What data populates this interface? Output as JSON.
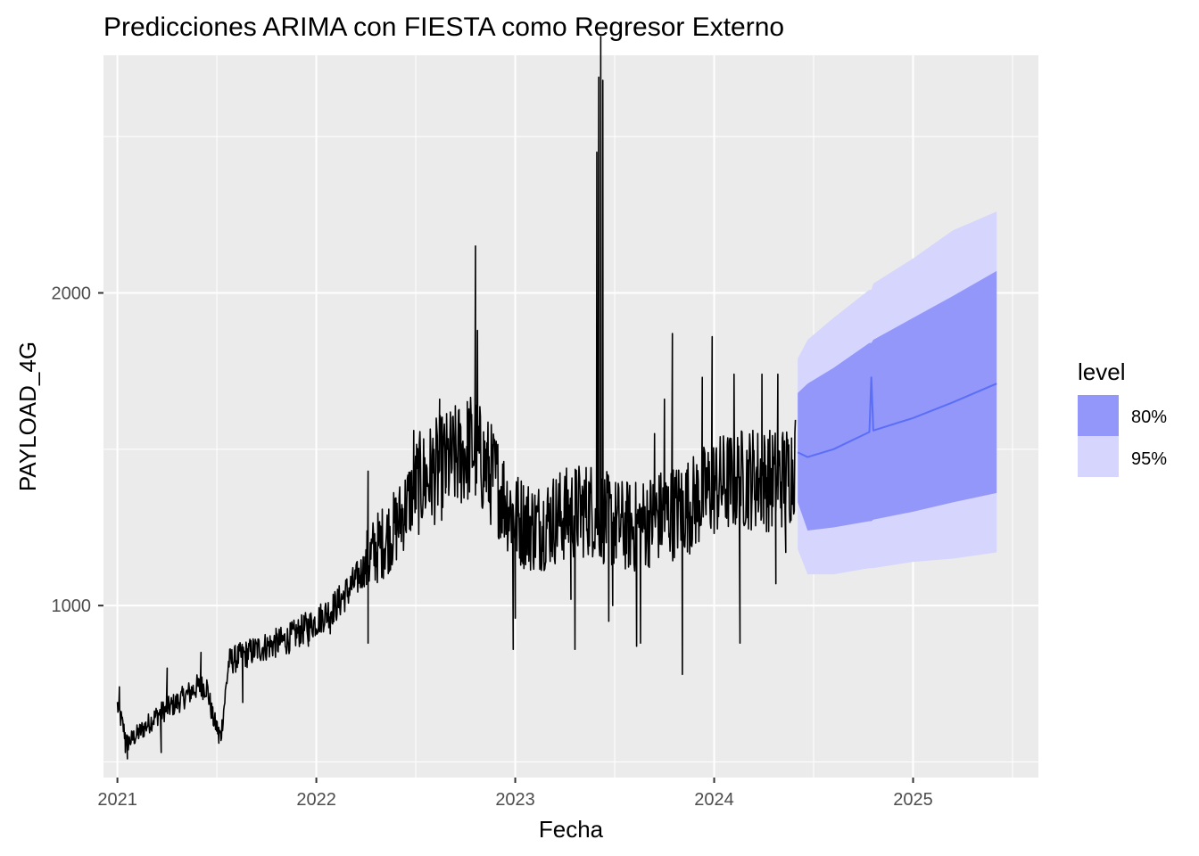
{
  "chart_data": {
    "type": "line",
    "title": "Predicciones ARIMA con FIESTA como Regresor Externo",
    "xlabel": "Fecha",
    "ylabel": "PAYLOAD_4G",
    "xlim": [
      2020.93,
      2025.63
    ],
    "ylim": [
      450,
      2760
    ],
    "x_ticks": [
      2021,
      2022,
      2023,
      2024,
      2025
    ],
    "x_tick_labels": [
      "2021",
      "2022",
      "2023",
      "2024",
      "2025"
    ],
    "y_ticks": [
      1000,
      2000
    ],
    "y_tick_labels": [
      "1000",
      "2000"
    ],
    "y_minor_ticks": [
      500,
      1500,
      2500
    ],
    "grid": true,
    "legend": {
      "title": "level",
      "position": "right",
      "entries": [
        {
          "label": "80%",
          "color": "#9297f9"
        },
        {
          "label": "95%",
          "color": "#d5d5fd"
        }
      ]
    },
    "colors": {
      "history": "#000000",
      "forecast": "#5a6ef7",
      "band80": "#9297f9",
      "band95": "#d5d5fd",
      "panel": "#ebebeb",
      "grid": "#ffffff"
    },
    "history_anchors": [
      {
        "x": 2021.0,
        "y": 680
      },
      {
        "x": 2021.05,
        "y": 560
      },
      {
        "x": 2021.12,
        "y": 600
      },
      {
        "x": 2021.2,
        "y": 650
      },
      {
        "x": 2021.3,
        "y": 690
      },
      {
        "x": 2021.4,
        "y": 740
      },
      {
        "x": 2021.45,
        "y": 740
      },
      {
        "x": 2021.48,
        "y": 640
      },
      {
        "x": 2021.52,
        "y": 580
      },
      {
        "x": 2021.56,
        "y": 820
      },
      {
        "x": 2021.7,
        "y": 860
      },
      {
        "x": 2021.85,
        "y": 890
      },
      {
        "x": 2022.0,
        "y": 950
      },
      {
        "x": 2022.1,
        "y": 1000
      },
      {
        "x": 2022.2,
        "y": 1080
      },
      {
        "x": 2022.3,
        "y": 1180
      },
      {
        "x": 2022.4,
        "y": 1250
      },
      {
        "x": 2022.5,
        "y": 1380
      },
      {
        "x": 2022.6,
        "y": 1430
      },
      {
        "x": 2022.7,
        "y": 1470
      },
      {
        "x": 2022.78,
        "y": 1510
      },
      {
        "x": 2022.9,
        "y": 1400
      },
      {
        "x": 2023.0,
        "y": 1280
      },
      {
        "x": 2023.1,
        "y": 1250
      },
      {
        "x": 2023.2,
        "y": 1280
      },
      {
        "x": 2023.3,
        "y": 1300
      },
      {
        "x": 2023.38,
        "y": 1310
      },
      {
        "x": 2023.5,
        "y": 1260
      },
      {
        "x": 2023.6,
        "y": 1250
      },
      {
        "x": 2023.7,
        "y": 1280
      },
      {
        "x": 2023.8,
        "y": 1300
      },
      {
        "x": 2023.9,
        "y": 1330
      },
      {
        "x": 2024.0,
        "y": 1380
      },
      {
        "x": 2024.1,
        "y": 1400
      },
      {
        "x": 2024.2,
        "y": 1410
      },
      {
        "x": 2024.3,
        "y": 1400
      },
      {
        "x": 2024.38,
        "y": 1420
      },
      {
        "x": 2024.41,
        "y": 1480
      }
    ],
    "history_spikes": [
      {
        "x": 2021.01,
        "y": 740
      },
      {
        "x": 2021.04,
        "y": 530
      },
      {
        "x": 2021.05,
        "y": 510
      },
      {
        "x": 2021.22,
        "y": 530
      },
      {
        "x": 2021.25,
        "y": 800
      },
      {
        "x": 2021.42,
        "y": 850
      },
      {
        "x": 2021.51,
        "y": 560
      },
      {
        "x": 2021.63,
        "y": 690
      },
      {
        "x": 2021.96,
        "y": 870
      },
      {
        "x": 2022.07,
        "y": 910
      },
      {
        "x": 2022.26,
        "y": 1430
      },
      {
        "x": 2022.26,
        "y": 880
      },
      {
        "x": 2022.49,
        "y": 1560
      },
      {
        "x": 2022.62,
        "y": 1660
      },
      {
        "x": 2022.65,
        "y": 1360
      },
      {
        "x": 2022.76,
        "y": 1400
      },
      {
        "x": 2022.8,
        "y": 2150
      },
      {
        "x": 2022.81,
        "y": 1880
      },
      {
        "x": 2022.87,
        "y": 1330
      },
      {
        "x": 2022.99,
        "y": 860
      },
      {
        "x": 2023.0,
        "y": 960
      },
      {
        "x": 2023.16,
        "y": 1260
      },
      {
        "x": 2023.28,
        "y": 1020
      },
      {
        "x": 2023.3,
        "y": 860
      },
      {
        "x": 2023.41,
        "y": 2450
      },
      {
        "x": 2023.42,
        "y": 2690
      },
      {
        "x": 2023.43,
        "y": 2820
      },
      {
        "x": 2023.44,
        "y": 2680
      },
      {
        "x": 2023.47,
        "y": 950
      },
      {
        "x": 2023.49,
        "y": 1000
      },
      {
        "x": 2023.61,
        "y": 870
      },
      {
        "x": 2023.63,
        "y": 880
      },
      {
        "x": 2023.7,
        "y": 1550
      },
      {
        "x": 2023.75,
        "y": 1660
      },
      {
        "x": 2023.79,
        "y": 1870
      },
      {
        "x": 2023.84,
        "y": 780
      },
      {
        "x": 2023.94,
        "y": 1730
      },
      {
        "x": 2023.99,
        "y": 1860
      },
      {
        "x": 2024.1,
        "y": 1740
      },
      {
        "x": 2024.13,
        "y": 880
      },
      {
        "x": 2024.24,
        "y": 1740
      },
      {
        "x": 2024.31,
        "y": 1070
      },
      {
        "x": 2024.32,
        "y": 1740
      },
      {
        "x": 2024.36,
        "y": 1170
      }
    ],
    "forecast": {
      "x": [
        2024.42,
        2024.47,
        2024.6,
        2024.78,
        2024.79,
        2024.8,
        2025.0,
        2025.2,
        2025.42
      ],
      "mean": [
        1490,
        1475,
        1500,
        1555,
        1730,
        1560,
        1600,
        1650,
        1710
      ],
      "lo80": [
        1330,
        1240,
        1250,
        1270,
        1270,
        1275,
        1300,
        1330,
        1360
      ],
      "hi80": [
        1680,
        1710,
        1760,
        1840,
        1840,
        1850,
        1920,
        1990,
        2070
      ],
      "lo95": [
        1180,
        1100,
        1100,
        1120,
        1120,
        1120,
        1140,
        1150,
        1170
      ],
      "hi95": [
        1790,
        1850,
        1920,
        2010,
        2010,
        2030,
        2110,
        2200,
        2260
      ]
    }
  }
}
